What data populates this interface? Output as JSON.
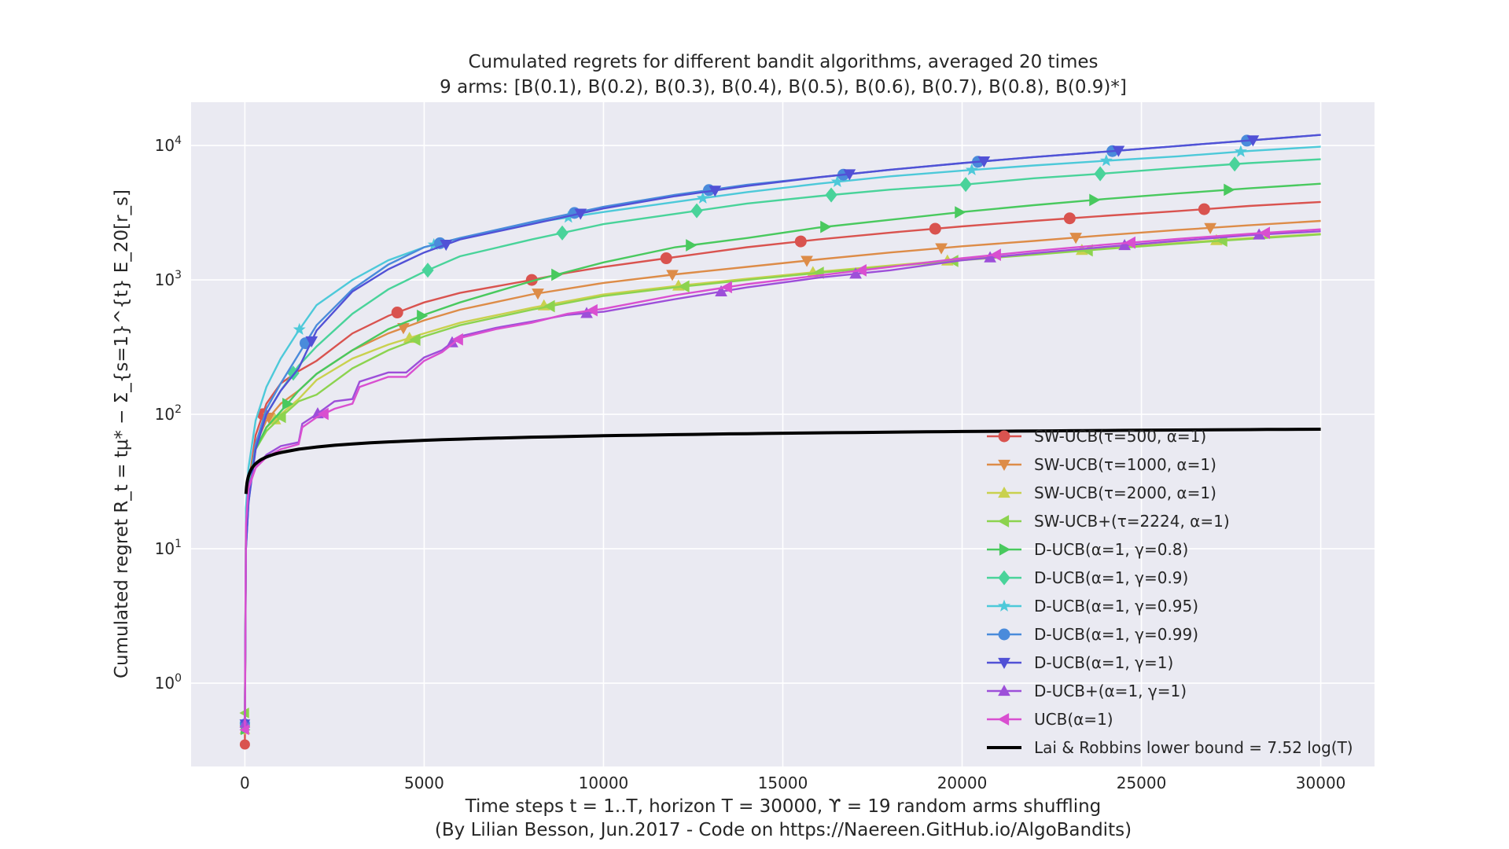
{
  "chart_data": {
    "type": "line",
    "title_line1": "Cumulated regrets for different bandit algorithms, averaged 20 times",
    "title_line2": "9 arms: [B(0.1), B(0.2), B(0.3), B(0.4), B(0.5), B(0.6), B(0.7), B(0.8), B(0.9)*]",
    "xlabel_line1": "Time steps t = 1..T, horizon T = 30000, ϒ = 19 random arms shuffling",
    "xlabel_line2": "(By Lilian Besson, Jun.2017 - Code on https://Naereen.GitHub.io/AlgoBandits)",
    "ylabel": "Cumulated regret R_t = tμ* − Σ_{s=1}^{t} E_20[r_s]",
    "x_ticks": [
      0,
      5000,
      10000,
      15000,
      20000,
      25000,
      30000
    ],
    "x_tick_labels": [
      "0",
      "5000",
      "10000",
      "15000",
      "20000",
      "25000",
      "30000"
    ],
    "y_ticks": [
      1,
      10,
      100,
      1000,
      10000
    ],
    "y_tick_base": "10",
    "y_tick_exponents": [
      "0",
      "1",
      "2",
      "3",
      "4"
    ],
    "xlim": [
      -1500,
      31500
    ],
    "ylim": [
      0.24,
      21000
    ],
    "yscale": "log",
    "grid": true,
    "legend_position": "lower-right",
    "series": [
      {
        "name": "SW-UCB(τ=500, α=1)",
        "color": "#d9534f",
        "marker": "circle",
        "x": [
          0,
          30,
          100,
          300,
          600,
          1000,
          1500,
          2000,
          3000,
          4000,
          5000,
          6000,
          8000,
          9000,
          10000,
          12000,
          14000,
          16000,
          18000,
          20000,
          22000,
          24000,
          26000,
          28000,
          30000
        ],
        "y": [
          0.35,
          14,
          30,
          70,
          120,
          170,
          210,
          250,
          400,
          540,
          680,
          800,
          1000,
          1130,
          1250,
          1480,
          1750,
          2000,
          2250,
          2500,
          2750,
          3000,
          3250,
          3550,
          3800
        ]
      },
      {
        "name": "SW-UCB(τ=1000, α=1)",
        "color": "#dd8c48",
        "marker": "triangle-down",
        "x": [
          0,
          30,
          100,
          300,
          600,
          1000,
          1500,
          2000,
          3000,
          4000,
          5000,
          6000,
          8000,
          10000,
          12000,
          14000,
          16000,
          18000,
          20000,
          22000,
          24000,
          26000,
          28000,
          30000
        ],
        "y": [
          0.45,
          14,
          25,
          60,
          90,
          120,
          150,
          200,
          300,
          400,
          500,
          600,
          780,
          950,
          1100,
          1250,
          1420,
          1600,
          1780,
          1950,
          2150,
          2350,
          2550,
          2750
        ]
      },
      {
        "name": "SW-UCB(τ=2000, α=1)",
        "color": "#c9d14e",
        "marker": "triangle-up",
        "x": [
          0,
          30,
          100,
          300,
          600,
          1000,
          1500,
          2000,
          3000,
          4000,
          5000,
          6000,
          8000,
          10000,
          12000,
          14000,
          16000,
          18000,
          20000,
          22000,
          24000,
          26000,
          28000,
          30000
        ],
        "y": [
          0.45,
          13,
          25,
          55,
          80,
          100,
          130,
          180,
          260,
          330,
          400,
          480,
          620,
          780,
          900,
          1020,
          1150,
          1280,
          1420,
          1560,
          1720,
          1880,
          2050,
          2200
        ]
      },
      {
        "name": "SW-UCB+(τ=2224, α=1)",
        "color": "#8cd34f",
        "marker": "triangle-left",
        "x": [
          0,
          30,
          100,
          300,
          600,
          1000,
          1500,
          2000,
          3000,
          4000,
          5000,
          6000,
          8000,
          10000,
          12000,
          14000,
          16000,
          18000,
          20000,
          22000,
          24000,
          26000,
          28000,
          30000
        ],
        "y": [
          0.6,
          20,
          30,
          55,
          75,
          95,
          125,
          140,
          220,
          300,
          380,
          460,
          600,
          760,
          880,
          1000,
          1130,
          1260,
          1400,
          1540,
          1700,
          1860,
          2020,
          2180
        ]
      },
      {
        "name": "D-UCB(α=1, γ=0.8)",
        "color": "#49c95e",
        "marker": "triangle-right",
        "x": [
          0,
          30,
          100,
          300,
          600,
          1000,
          1500,
          2000,
          3000,
          4000,
          5000,
          6000,
          8000,
          10000,
          12000,
          14000,
          16000,
          18000,
          20000,
          22000,
          24000,
          26000,
          28000,
          30000
        ],
        "y": [
          0.45,
          15,
          28,
          55,
          80,
          105,
          150,
          200,
          300,
          430,
          550,
          680,
          980,
          1350,
          1750,
          2050,
          2450,
          2800,
          3200,
          3600,
          4000,
          4400,
          4800,
          5200
        ]
      },
      {
        "name": "D-UCB(α=1, γ=0.9)",
        "color": "#49d39a",
        "marker": "diamond",
        "x": [
          0,
          30,
          100,
          300,
          600,
          1000,
          1500,
          2000,
          3000,
          4000,
          5000,
          6000,
          8000,
          10000,
          12000,
          14000,
          16000,
          18000,
          20000,
          22000,
          24000,
          26000,
          28000,
          30000
        ],
        "y": [
          0.5,
          15,
          28,
          60,
          100,
          150,
          230,
          320,
          560,
          850,
          1150,
          1500,
          2000,
          2600,
          3100,
          3700,
          4200,
          4700,
          5100,
          5700,
          6200,
          6800,
          7400,
          7900
        ]
      },
      {
        "name": "D-UCB(α=1, γ=0.95)",
        "color": "#4dc9d9",
        "marker": "star",
        "x": [
          0,
          30,
          100,
          300,
          600,
          1000,
          1500,
          2000,
          3000,
          4000,
          5000,
          6000,
          8000,
          10000,
          12000,
          14000,
          16000,
          18000,
          20000,
          22000,
          24000,
          26000,
          28000,
          30000
        ],
        "y": [
          0.5,
          20,
          40,
          90,
          160,
          260,
          420,
          650,
          1000,
          1400,
          1750,
          2050,
          2650,
          3200,
          3800,
          4500,
          5200,
          5900,
          6500,
          7100,
          7700,
          8300,
          9100,
          9800
        ]
      },
      {
        "name": "D-UCB(α=1, γ=0.99)",
        "color": "#4a8bdb",
        "marker": "circle",
        "x": [
          0,
          30,
          100,
          300,
          600,
          1000,
          1500,
          2000,
          3000,
          4000,
          5000,
          6000,
          8000,
          10000,
          12000,
          14000,
          16000,
          18000,
          20000,
          22000,
          24000,
          26000,
          28000,
          30000
        ],
        "y": [
          0.5,
          10,
          22,
          60,
          110,
          170,
          280,
          460,
          850,
          1300,
          1750,
          2050,
          2700,
          3500,
          4300,
          5100,
          5800,
          6600,
          7400,
          8200,
          9000,
          9900,
          10900,
          12000
        ]
      },
      {
        "name": "D-UCB(α=1, γ=1)",
        "color": "#5151d6",
        "marker": "triangle-down",
        "x": [
          0,
          30,
          100,
          300,
          600,
          1000,
          1500,
          2000,
          3000,
          4000,
          5000,
          6000,
          8000,
          10000,
          12000,
          14000,
          16000,
          18000,
          20000,
          22000,
          24000,
          26000,
          28000,
          30000
        ],
        "y": [
          0.5,
          10,
          22,
          55,
          100,
          150,
          220,
          420,
          820,
          1200,
          1600,
          2000,
          2600,
          3400,
          4200,
          5000,
          5800,
          6600,
          7400,
          8200,
          9000,
          9900,
          10900,
          12000
        ]
      },
      {
        "name": "D-UCB+(α=1, γ=1)",
        "color": "#9d4fd9",
        "marker": "triangle-up",
        "x": [
          0,
          30,
          100,
          300,
          600,
          1000,
          1500,
          1600,
          2000,
          2500,
          3000,
          3200,
          4000,
          4500,
          5000,
          5500,
          6000,
          7000,
          8000,
          9000,
          10000,
          12000,
          14000,
          16000,
          18000,
          20000,
          22000,
          24000,
          26000,
          28000,
          30000
        ],
        "y": [
          0.5,
          15,
          30,
          40,
          50,
          58,
          62,
          85,
          100,
          125,
          130,
          175,
          205,
          205,
          265,
          300,
          380,
          440,
          490,
          550,
          580,
          720,
          880,
          1040,
          1180,
          1400,
          1580,
          1760,
          1950,
          2150,
          2300
        ]
      },
      {
        "name": "UCB(α=1)",
        "color": "#d94fd0",
        "marker": "triangle-left",
        "x": [
          0,
          30,
          100,
          300,
          600,
          1000,
          1500,
          1600,
          2000,
          2500,
          3000,
          3200,
          4000,
          4500,
          5000,
          5500,
          6000,
          7000,
          8000,
          9000,
          10000,
          12000,
          14000,
          16000,
          18000,
          20000,
          22000,
          24000,
          26000,
          28000,
          30000
        ],
        "y": [
          0.45,
          15,
          28,
          40,
          48,
          55,
          60,
          80,
          95,
          110,
          120,
          160,
          190,
          190,
          250,
          290,
          370,
          430,
          480,
          560,
          610,
          770,
          930,
          1080,
          1250,
          1450,
          1640,
          1830,
          2020,
          2200,
          2380
        ]
      }
    ],
    "lower_bound": {
      "name": "Lai & Robbins lower bound = 7.52 log(T)",
      "color": "#000000",
      "coefficient": 7.52,
      "x_start": 30,
      "x_end": 30000
    }
  }
}
